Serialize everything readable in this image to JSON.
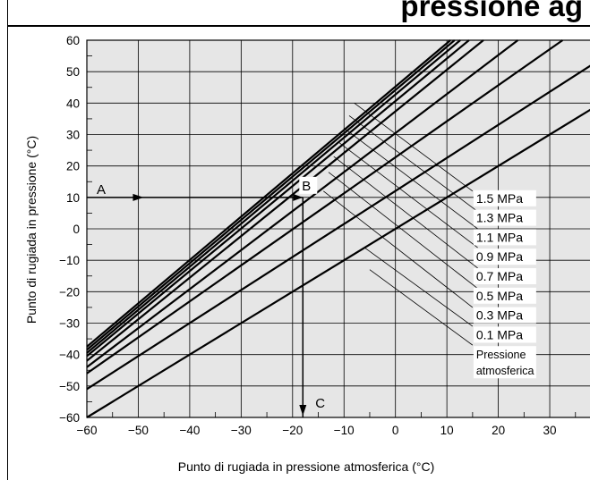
{
  "header": {
    "title_fragment": "pressione ag"
  },
  "chart_data": {
    "type": "line",
    "title": "",
    "xlabel": "Punto di rugiada in pressione atmosferica (°C)",
    "ylabel": "Punto di rugiada in pressione (°C)",
    "xlim": [
      -60,
      38
    ],
    "ylim": [
      -60,
      60
    ],
    "x_ticks": [
      -60,
      -50,
      -40,
      -30,
      -20,
      -10,
      0,
      10,
      20,
      30
    ],
    "y_ticks": [
      -60,
      -50,
      -40,
      -30,
      -20,
      -10,
      0,
      10,
      20,
      30,
      40,
      50,
      60
    ],
    "x_tick_labels": [
      "−60",
      "−50",
      "−40",
      "−30",
      "−20",
      "−10",
      "0",
      "10",
      "20",
      "30"
    ],
    "y_tick_labels": [
      "−60",
      "−50",
      "−40",
      "−30",
      "−20",
      "−10",
      "0",
      "10",
      "20",
      "30",
      "40",
      "50",
      "60"
    ],
    "grid": true,
    "background": "#e6e6e6",
    "line_color": "#000000",
    "series": [
      {
        "name": "Pressione atmosferica",
        "x": [
          -60,
          38
        ],
        "y": [
          -60,
          38
        ]
      },
      {
        "name": "0.1 MPa",
        "x": [
          -60,
          38
        ],
        "y": [
          -51,
          52
        ]
      },
      {
        "name": "0.3 MPa",
        "x": [
          -60,
          32.5
        ],
        "y": [
          -46,
          60
        ]
      },
      {
        "name": "0.5 MPa",
        "x": [
          -60,
          23.8
        ],
        "y": [
          -44,
          60
        ]
      },
      {
        "name": "0.7 MPa",
        "x": [
          -60,
          17.1
        ],
        "y": [
          -42,
          60
        ]
      },
      {
        "name": "0.9 MPa",
        "x": [
          -60,
          14.3
        ],
        "y": [
          -40.5,
          60
        ]
      },
      {
        "name": "1.1 MPa",
        "x": [
          -60,
          12.6
        ],
        "y": [
          -39.5,
          60
        ]
      },
      {
        "name": "1.3 MPa",
        "x": [
          -60,
          11.5
        ],
        "y": [
          -38.5,
          60
        ]
      },
      {
        "name": "1.5 MPa",
        "x": [
          -60,
          10.7
        ],
        "y": [
          -37.5,
          60
        ]
      }
    ],
    "label_leaders": [
      {
        "label": "1.5 MPa",
        "x": [
          -8,
          15
        ],
        "y": [
          40,
          12
        ]
      },
      {
        "label": "1.3 MPa",
        "x": [
          -9,
          16
        ],
        "y": [
          36,
          5.5
        ]
      },
      {
        "label": "1.1 MPa",
        "x": [
          -10,
          16
        ],
        "y": [
          32,
          0
        ]
      },
      {
        "label": "0.9 MPa",
        "x": [
          -11,
          16
        ],
        "y": [
          27.5,
          -6
        ]
      },
      {
        "label": "0.7 MPa",
        "x": [
          -12,
          16
        ],
        "y": [
          23,
          -12.5
        ]
      },
      {
        "label": "0.5 MPa",
        "x": [
          -13,
          16
        ],
        "y": [
          18,
          -19
        ]
      },
      {
        "label": "0.3 MPa",
        "x": [
          -14,
          15
        ],
        "y": [
          12,
          -25
        ]
      },
      {
        "label": "0.1 MPa",
        "x": [
          -6,
          15
        ],
        "y": [
          -6,
          -31
        ]
      },
      {
        "label": "Pressione atmosferica",
        "x": [
          -5,
          15
        ],
        "y": [
          -13,
          -37
        ]
      }
    ],
    "legend_labels": [
      "1.5 MPa",
      "1.3 MPa",
      "1.1 MPa",
      "0.9 MPa",
      "0.7 MPa",
      "0.5 MPa",
      "0.3 MPa",
      "0.1 MPa"
    ],
    "legend_multiline": {
      "lines": [
        "Pressione",
        "atmosferica"
      ]
    },
    "example": {
      "point_A": {
        "label": "A",
        "x": -60,
        "y": 10
      },
      "point_B": {
        "label": "B",
        "x": -18,
        "y": 10
      },
      "point_C": {
        "label": "C",
        "x": -18,
        "y": -60
      },
      "arrow_A_to_B": {
        "x": [
          -60,
          -18
        ],
        "y": [
          10,
          10
        ],
        "mid_arrow_x": -50
      },
      "arrow_B_to_C": {
        "x": [
          -18,
          -18
        ],
        "y": [
          10,
          -60
        ]
      }
    }
  }
}
